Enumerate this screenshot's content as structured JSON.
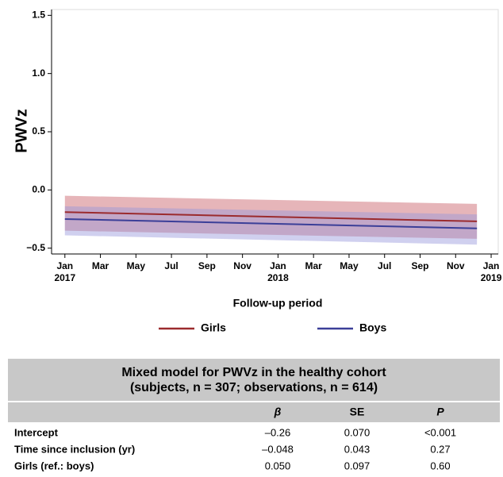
{
  "chart_data": {
    "type": "line",
    "y_label": "PWVz",
    "x_label": "Follow-up period",
    "xlim": [
      -0.75,
      24.4
    ],
    "ylim": [
      -0.55,
      1.55
    ],
    "yticks": [
      {
        "value": 1.5,
        "label": "1.5"
      },
      {
        "value": 1.0,
        "label": "1.0"
      },
      {
        "value": 0.5,
        "label": "0.5"
      },
      {
        "value": 0.0,
        "label": "0.0"
      },
      {
        "value": -0.5,
        "label": "−0.5"
      }
    ],
    "xticks": [
      {
        "value": 0,
        "label": "Jan 2017"
      },
      {
        "value": 2,
        "label": "Mar"
      },
      {
        "value": 4,
        "label": "May"
      },
      {
        "value": 6,
        "label": "Jul"
      },
      {
        "value": 8,
        "label": "Sep"
      },
      {
        "value": 10,
        "label": "Nov"
      },
      {
        "value": 12,
        "label": "Jan 2018"
      },
      {
        "value": 14,
        "label": "Mar"
      },
      {
        "value": 16,
        "label": "May"
      },
      {
        "value": 18,
        "label": "Jul"
      },
      {
        "value": 20,
        "label": "Sep"
      },
      {
        "value": 22,
        "label": "Nov"
      },
      {
        "value": 24,
        "label": "Jan 2019"
      }
    ],
    "series": [
      {
        "name": "Girls",
        "color": "#9b2b2e",
        "band_color": "rgba(200,90,100,0.45)",
        "x": [
          0,
          23.2
        ],
        "values": [
          -0.19,
          -0.27
        ],
        "upper": [
          -0.05,
          -0.12
        ],
        "lower": [
          -0.35,
          -0.42
        ]
      },
      {
        "name": "Boys",
        "color": "#3b3f98",
        "band_color": "rgba(150,150,220,0.45)",
        "x": [
          0,
          23.2
        ],
        "values": [
          -0.25,
          -0.33
        ],
        "upper": [
          -0.14,
          -0.21
        ],
        "lower": [
          -0.39,
          -0.47
        ]
      }
    ]
  },
  "table": {
    "title_lines": [
      "Mixed model for PWVz in the healthy cohort",
      "(subjects, n = 307; observations, n = 614)"
    ],
    "columns": [
      "β",
      "SE",
      "P"
    ],
    "rows": [
      [
        "Intercept",
        "–0.26",
        "0.070",
        "<0.001"
      ],
      [
        "Time since inclusion (yr)",
        "–0.048",
        "0.043",
        "0.27"
      ],
      [
        "Girls (ref.: boys)",
        "0.050",
        "0.097",
        "0.60"
      ]
    ]
  }
}
